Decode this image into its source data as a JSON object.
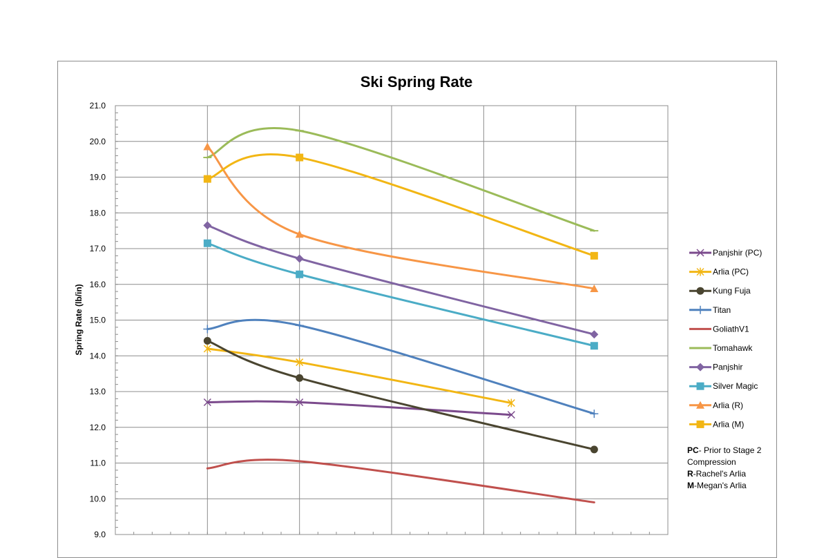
{
  "chart_data": {
    "type": "line",
    "title": "Ski Spring Rate",
    "xlabel": "",
    "ylabel": "Spring Rate (lb/in)",
    "xlim": [
      0,
      6
    ],
    "ylim": [
      9.0,
      21.0
    ],
    "yticks": [
      "21.0",
      "20.0",
      "19.0",
      "18.0",
      "17.0",
      "16.0",
      "15.0",
      "14.0",
      "13.0",
      "12.0",
      "11.0",
      "10.0",
      "9.0"
    ],
    "grid": true,
    "legend_position": "right",
    "series": [
      {
        "name": "Panjshir (PC)",
        "color": "#7b4a8c",
        "marker": "x",
        "x": [
          1,
          2,
          4.3
        ],
        "y": [
          12.7,
          12.7,
          12.35
        ]
      },
      {
        "name": "Arlia (PC)",
        "color": "#f2b614",
        "marker": "asterisk",
        "x": [
          1,
          2,
          4.3
        ],
        "y": [
          14.2,
          13.82,
          12.68
        ]
      },
      {
        "name": "Kung Fuja",
        "color": "#4a4530",
        "marker": "circle",
        "x": [
          1,
          2,
          5.2
        ],
        "y": [
          14.42,
          13.38,
          11.38
        ]
      },
      {
        "name": "Titan",
        "color": "#4f81bd",
        "marker": "plus",
        "x": [
          1,
          2,
          5.2
        ],
        "y": [
          14.75,
          14.85,
          12.38
        ]
      },
      {
        "name": "GoliathV1",
        "color": "#c0504d",
        "marker": "none",
        "x": [
          1,
          2,
          5.2
        ],
        "y": [
          10.85,
          11.05,
          9.9
        ]
      },
      {
        "name": "Tomahawk",
        "color": "#9bbb59",
        "marker": "dash",
        "x": [
          1,
          2,
          5.2
        ],
        "y": [
          19.55,
          20.3,
          17.5
        ]
      },
      {
        "name": "Panjshir",
        "color": "#8064a2",
        "marker": "diamond",
        "x": [
          1,
          2,
          5.2
        ],
        "y": [
          17.65,
          16.72,
          14.6
        ]
      },
      {
        "name": "Silver Magic",
        "color": "#4bacc6",
        "marker": "square",
        "x": [
          1,
          2,
          5.2
        ],
        "y": [
          17.15,
          16.28,
          14.28
        ]
      },
      {
        "name": "Arlia (R)",
        "color": "#f79646",
        "marker": "triangle",
        "x": [
          1,
          2,
          5.2
        ],
        "y": [
          19.85,
          17.4,
          15.88
        ]
      },
      {
        "name": "Arlia (M)",
        "color": "#f2b614",
        "marker": "square",
        "x": [
          1,
          2,
          5.2
        ],
        "y": [
          18.95,
          19.55,
          16.8
        ]
      }
    ],
    "notes": [
      {
        "bold": "PC",
        "text": "- Prior to Stage 2"
      },
      {
        "bold": "",
        "text": "Compression"
      },
      {
        "bold": "R",
        "text": "-Rachel's Arlia"
      },
      {
        "bold": "M",
        "text": "-Megan's Arlia"
      }
    ]
  }
}
